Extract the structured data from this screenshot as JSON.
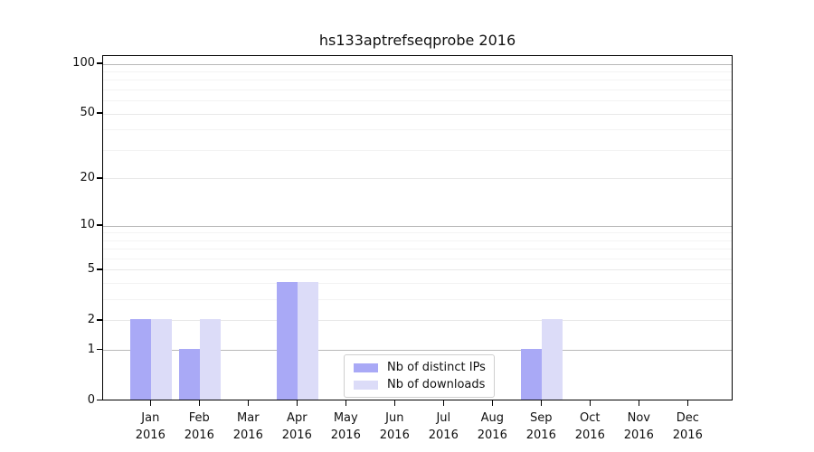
{
  "title": "hs133aptrefseqprobe 2016",
  "chart_data": {
    "type": "bar",
    "title": "hs133aptrefseqprobe 2016",
    "categories": [
      "Jan 2016",
      "Feb 2016",
      "Mar 2016",
      "Apr 2016",
      "May 2016",
      "Jun 2016",
      "Jul 2016",
      "Aug 2016",
      "Sep 2016",
      "Oct 2016",
      "Nov 2016",
      "Dec 2016"
    ],
    "series": [
      {
        "name": "Nb of distinct IPs",
        "color": "#a9a9f6",
        "values": [
          2,
          1,
          0,
          4,
          0,
          0,
          0,
          0,
          1,
          0,
          0,
          0
        ]
      },
      {
        "name": "Nb of downloads",
        "color": "#dcdcf8",
        "values": [
          2,
          2,
          0,
          4,
          0,
          0,
          0,
          0,
          2,
          0,
          0,
          0
        ]
      }
    ],
    "xlabel": "",
    "ylabel": "",
    "yscale": "log1p",
    "yticks": [
      0,
      1,
      2,
      5,
      10,
      20,
      50,
      100
    ],
    "ygrid_decade": [
      1,
      10,
      100
    ],
    "ygrid_labeled": [
      2,
      5,
      20,
      50
    ],
    "ygrid_minor": [
      3,
      4,
      6,
      7,
      8,
      9,
      30,
      40,
      60,
      70,
      80,
      90
    ],
    "ylim": [
      0,
      112
    ],
    "grid": "horizontal",
    "legend_position": "lower-center"
  }
}
